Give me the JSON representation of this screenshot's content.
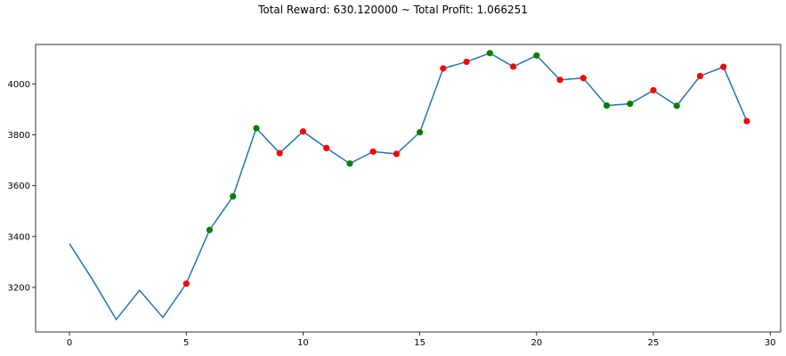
{
  "chart_data": {
    "type": "line",
    "title": "Total Reward: 630.120000 ~ Total Profit: 1.066251",
    "xlabel": "",
    "ylabel": "",
    "xlim": [
      -1.45,
      30.45
    ],
    "ylim": [
      3025,
      4155
    ],
    "x_ticks": [
      0,
      5,
      10,
      15,
      20,
      25,
      30
    ],
    "y_ticks": [
      3200,
      3400,
      3600,
      3800,
      4000
    ],
    "grid": false,
    "line_color": "#1f77b4",
    "series": [
      {
        "x": [
          0,
          1,
          2,
          3,
          4,
          5,
          6,
          7,
          8,
          9,
          10,
          11,
          12,
          13,
          14,
          15,
          16,
          17,
          18,
          19,
          20,
          21,
          22,
          23,
          24,
          25,
          26,
          27,
          28,
          29
        ],
        "values": [
          3372,
          3229,
          3074,
          3189,
          3082,
          3215,
          3426,
          3558,
          3826,
          3728,
          3813,
          3748,
          3687,
          3734,
          3725,
          3810,
          4061,
          4087,
          4121,
          4068,
          4112,
          4016,
          4023,
          3915,
          3922,
          3975,
          3914,
          4031,
          4067,
          3854
        ]
      }
    ],
    "markers": [
      {
        "x": 5,
        "y": 3215,
        "color": "red"
      },
      {
        "x": 6,
        "y": 3426,
        "color": "green"
      },
      {
        "x": 7,
        "y": 3558,
        "color": "green"
      },
      {
        "x": 8,
        "y": 3826,
        "color": "green"
      },
      {
        "x": 9,
        "y": 3728,
        "color": "red"
      },
      {
        "x": 10,
        "y": 3813,
        "color": "red"
      },
      {
        "x": 11,
        "y": 3748,
        "color": "red"
      },
      {
        "x": 12,
        "y": 3687,
        "color": "green"
      },
      {
        "x": 13,
        "y": 3734,
        "color": "red"
      },
      {
        "x": 14,
        "y": 3725,
        "color": "red"
      },
      {
        "x": 15,
        "y": 3810,
        "color": "green"
      },
      {
        "x": 16,
        "y": 4061,
        "color": "red"
      },
      {
        "x": 17,
        "y": 4087,
        "color": "red"
      },
      {
        "x": 18,
        "y": 4121,
        "color": "green"
      },
      {
        "x": 19,
        "y": 4068,
        "color": "red"
      },
      {
        "x": 20,
        "y": 4112,
        "color": "green"
      },
      {
        "x": 21,
        "y": 4016,
        "color": "red"
      },
      {
        "x": 22,
        "y": 4023,
        "color": "red"
      },
      {
        "x": 23,
        "y": 3915,
        "color": "green"
      },
      {
        "x": 24,
        "y": 3922,
        "color": "green"
      },
      {
        "x": 25,
        "y": 3975,
        "color": "red"
      },
      {
        "x": 26,
        "y": 3914,
        "color": "green"
      },
      {
        "x": 27,
        "y": 4031,
        "color": "red"
      },
      {
        "x": 28,
        "y": 4067,
        "color": "red"
      },
      {
        "x": 29,
        "y": 3854,
        "color": "red"
      }
    ],
    "marker_colors": {
      "red": "#ff0000",
      "green": "#008000"
    }
  }
}
